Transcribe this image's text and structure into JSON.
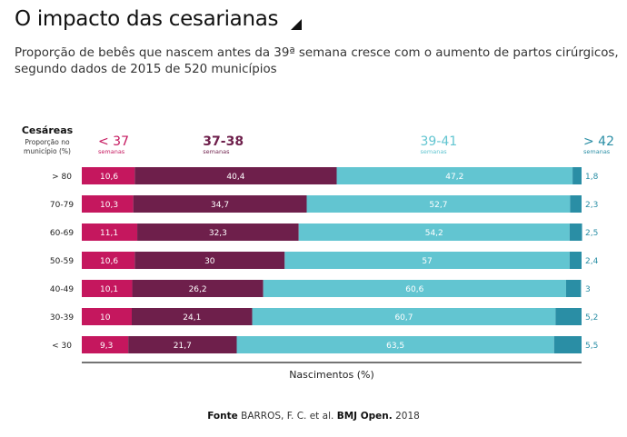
{
  "title": "O impacto das cesarianas",
  "subtitle_lines": [
    "Proporção de bebês que nascem antes da 39ª semana cresce com o aumento de partos cirúrgicos,",
    "segundo dados de 2015 de 520 municípios"
  ],
  "colors": {
    "lt37": "#c5175e",
    "w37_38": "#6e1f4b",
    "w39_41": "#62c5d1",
    "gt42": "#2a8ea5",
    "label_gt42": "#2a8ea5",
    "label_39_41": "#62c5d1",
    "label_lt37": "#c5175e",
    "label_37_38": "#6e1f4b"
  },
  "chart_data": {
    "type": "bar",
    "orientation": "horizontal",
    "stacked": true,
    "xlim": [
      0,
      100
    ],
    "xlabel": "Nascimentos (%)",
    "row_header": {
      "title": "Cesáreas",
      "sub1": "Proporção no",
      "sub2": "município (%)"
    },
    "categories": [
      "> 80",
      "70-79",
      "60-69",
      "50-59",
      "40-49",
      "30-39",
      "< 30"
    ],
    "series": [
      {
        "name": "< 37",
        "unit": "semanas",
        "color_key": "lt37",
        "values": [
          10.6,
          10.3,
          11.1,
          10.6,
          10.1,
          10,
          9.3
        ],
        "labels": [
          "10,6",
          "10,3",
          "11,1",
          "10,6",
          "10,1",
          "10",
          "9,3"
        ]
      },
      {
        "name": "37-38",
        "unit": "semanas",
        "color_key": "w37_38",
        "values": [
          40.4,
          34.7,
          32.3,
          30,
          26.2,
          24.1,
          21.7
        ],
        "labels": [
          "40,4",
          "34,7",
          "32,3",
          "30",
          "26,2",
          "24,1",
          "21,7"
        ]
      },
      {
        "name": "39-41",
        "unit": "semanas",
        "color_key": "w39_41",
        "values": [
          47.2,
          52.7,
          54.2,
          57,
          60.6,
          60.7,
          63.5
        ],
        "labels": [
          "47,2",
          "52,7",
          "54,2",
          "57",
          "60,6",
          "60,7",
          "63,5"
        ]
      },
      {
        "name": "> 42",
        "unit": "semanas",
        "color_key": "gt42",
        "values": [
          1.8,
          2.3,
          2.5,
          2.4,
          3,
          5.2,
          5.5
        ],
        "labels": [
          "1,8",
          "2,3",
          "2,5",
          "2,4",
          "3",
          "5,2",
          "5,5"
        ]
      }
    ]
  },
  "source": {
    "label": "Fonte",
    "text": "BARROS, F. C. et al.",
    "journal": "BMJ Open.",
    "year": "2018"
  }
}
